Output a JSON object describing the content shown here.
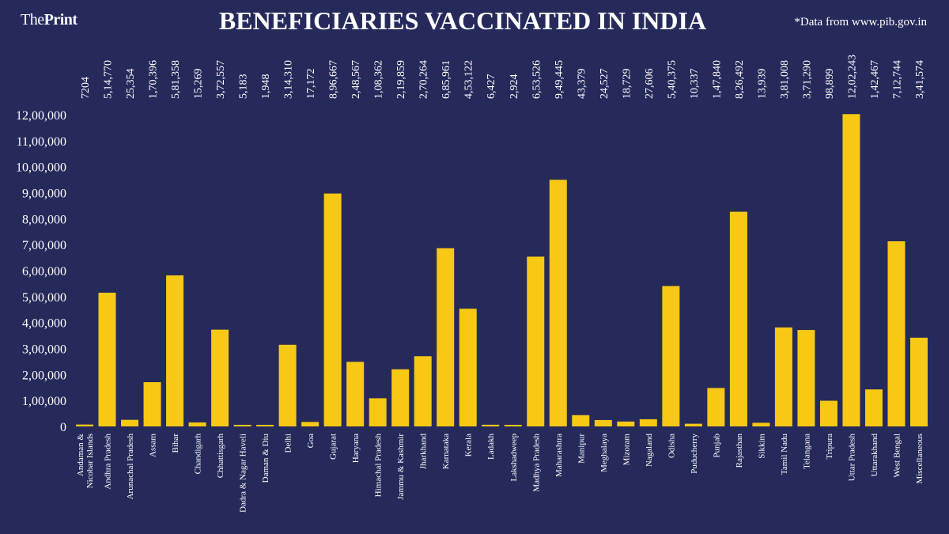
{
  "header": {
    "logo_prefix": "The",
    "logo_bold": "Print",
    "title": "BENEFICIARIES VACCINATED IN INDIA",
    "source": "*Data from www.pib.gov.in"
  },
  "colors": {
    "background": "#262a5b",
    "bar": "#f7c814",
    "text": "#ffffff"
  },
  "chart_data": {
    "type": "bar",
    "title": "BENEFICIARIES VACCINATED IN INDIA",
    "xlabel": "",
    "ylabel": "",
    "ylim": [
      0,
      1200000
    ],
    "yticks": [
      0,
      100000,
      200000,
      300000,
      400000,
      500000,
      600000,
      700000,
      800000,
      900000,
      1000000,
      1100000,
      1200000
    ],
    "ytick_labels": [
      "0",
      "1,00,000",
      "2,00,000",
      "3,00,000",
      "4,00,000",
      "5,00,000",
      "6,00,000",
      "7,00,000",
      "8,00,000",
      "9,00,000",
      "10,00,000",
      "11,00,000",
      "12,00,000"
    ],
    "grid": false,
    "categories": [
      "Andaman & Nicobar Islands",
      "Andhra Pradesh",
      "Arunachal Pradesh",
      "Assam",
      "Bihar",
      "Chandigarh",
      "Chhattisgarh",
      "Dadra & Nagar Haveli",
      "Daman & Diu",
      "Delhi",
      "Goa",
      "Gujarat",
      "Haryana",
      "Himachal Pradesh",
      "Jammu & Kashmir",
      "Jharkhand",
      "Karnataka",
      "Kerala",
      "Ladakh",
      "Lakshadweep",
      "Madhya Pradesh",
      "Maharashtra",
      "Manipur",
      "Meghalaya",
      "Mizoram",
      "Nagaland",
      "Odisha",
      "Puducherry",
      "Punjab",
      "Rajasthan",
      "Sikkim",
      "Tamil Nadu",
      "Telangana",
      "Tripura",
      "Uttar Pradesh",
      "Uttarakhand",
      "West Bengal",
      "Miscellaneous"
    ],
    "values": [
      7204,
      514770,
      25354,
      170396,
      581358,
      15269,
      372557,
      5183,
      1948,
      314310,
      17172,
      896667,
      248567,
      108362,
      219859,
      270264,
      685961,
      453122,
      6427,
      2924,
      653526,
      949445,
      43379,
      24527,
      18729,
      27606,
      540375,
      10337,
      147840,
      826492,
      13939,
      381008,
      371290,
      98899,
      1202243,
      142467,
      712744,
      341574
    ],
    "data_labels": [
      "7204",
      "5,14,770",
      "25,354",
      "1,70,396",
      "5,81,358",
      "15,269",
      "3,72,557",
      "5,183",
      "1,948",
      "3,14,310",
      "17,172",
      "8,96,667",
      "2,48,567",
      "1,08,362",
      "2,19,859",
      "2,70,264",
      "6,85,961",
      "4,53,122",
      "6,427",
      "2,924",
      "6,53,526",
      "9,49,445",
      "43,379",
      "24,527",
      "18,729",
      "27,606",
      "5,40,375",
      "10,337",
      "1,47,840",
      "8,26,492",
      "13,939",
      "3,81,008",
      "3,71,290",
      "98,899",
      "12,02,243",
      "1,42,467",
      "7,12,744",
      "3,41,574"
    ]
  }
}
